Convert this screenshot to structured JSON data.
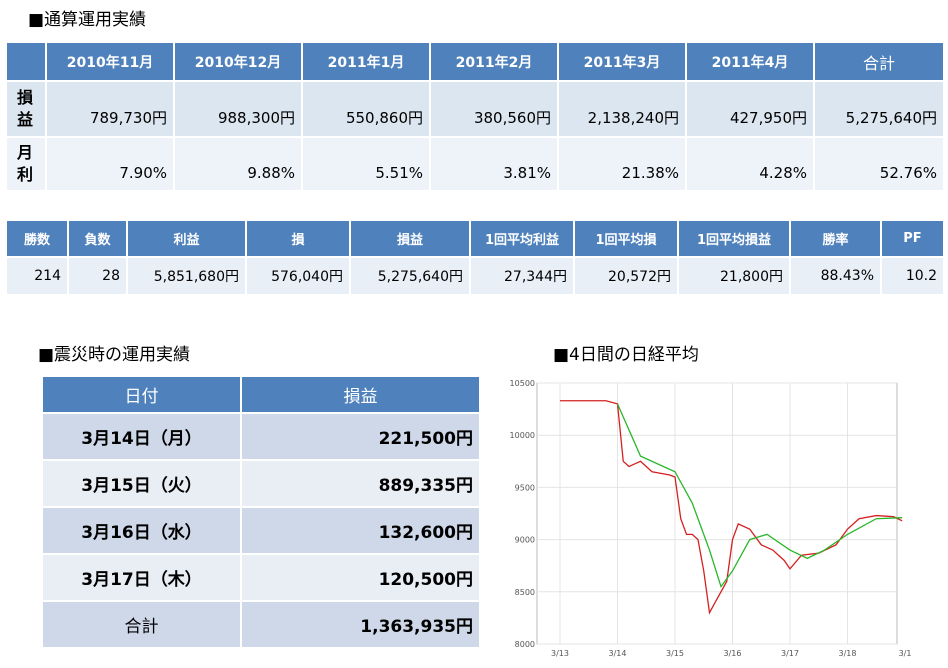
{
  "title": "■通算運用実績",
  "monthly_table": {
    "columns": [
      "2010年11月",
      "2010年12月",
      "2011年1月",
      "2011年2月",
      "2011年3月",
      "2011年4月",
      "合計"
    ],
    "rows": [
      {
        "label": "損益",
        "cells": [
          "789,730円",
          "988,300円",
          "550,860円",
          "380,560円",
          "2,138,240円",
          "427,950円",
          "5,275,640円"
        ]
      },
      {
        "label": "月利",
        "cells": [
          "7.90%",
          "9.88%",
          "5.51%",
          "3.81%",
          "21.38%",
          "4.28%",
          "52.76%"
        ]
      }
    ]
  },
  "stats_table": {
    "columns": [
      "勝数",
      "負数",
      "利益",
      "損",
      "損益",
      "1回平均利益",
      "1回平均損",
      "1回平均損益",
      "勝率",
      "PF"
    ],
    "cells": [
      "214",
      "28",
      "5,851,680円",
      "576,040円",
      "5,275,640円",
      "27,344円",
      "20,572円",
      "21,800円",
      "88.43%",
      "10.2"
    ]
  },
  "quake_title": "■震災時の運用実績",
  "quake_table": {
    "columns": [
      "日付",
      "損益"
    ],
    "rows": [
      [
        "3月14日（月）",
        "221,500円"
      ],
      [
        "3月15日（火）",
        "889,335円"
      ],
      [
        "3月16日（水）",
        "132,600円"
      ],
      [
        "3月17日（木）",
        "120,500円"
      ],
      [
        "合計",
        "1,363,935円"
      ]
    ]
  },
  "chart_data": {
    "type": "line",
    "title": "■4日間の日経平均",
    "xlim": [
      12.6,
      19.0
    ],
    "xticks": [
      {
        "value": 13,
        "label": "3/13"
      },
      {
        "value": 14,
        "label": "3/14"
      },
      {
        "value": 15,
        "label": "3/15"
      },
      {
        "value": 16,
        "label": "3/16"
      },
      {
        "value": 17,
        "label": "3/17"
      },
      {
        "value": 18,
        "label": "3/18"
      },
      {
        "value": 19,
        "label": "3/1"
      }
    ],
    "ylim": [
      8000,
      10500
    ],
    "yticks": [
      8000,
      8500,
      9000,
      9500,
      10000,
      10500
    ],
    "grid": true,
    "series": [
      {
        "color": "#d62020",
        "x": [
          13.0,
          13.8,
          14.0,
          14.1,
          14.2,
          14.4,
          14.6,
          14.9,
          15.0,
          15.1,
          15.2,
          15.3,
          15.4,
          15.5,
          15.6,
          15.7,
          15.9,
          16.0,
          16.1,
          16.3,
          16.5,
          16.7,
          16.9,
          17.0,
          17.2,
          17.5,
          17.8,
          18.0,
          18.2,
          18.5,
          18.8,
          18.95
        ],
        "values": [
          10330,
          10330,
          10300,
          9750,
          9700,
          9750,
          9650,
          9620,
          9600,
          9200,
          9050,
          9050,
          9000,
          8700,
          8300,
          8400,
          8600,
          9000,
          9150,
          9100,
          8950,
          8900,
          8800,
          8720,
          8850,
          8870,
          8950,
          9100,
          9200,
          9230,
          9220,
          9180
        ]
      },
      {
        "color": "#2bb52b",
        "x": [
          14.0,
          14.4,
          15.0,
          15.3,
          15.6,
          15.8,
          16.0,
          16.3,
          16.6,
          17.0,
          17.3,
          17.6,
          18.0,
          18.5,
          18.95
        ],
        "values": [
          10300,
          9800,
          9650,
          9350,
          8900,
          8550,
          8700,
          9000,
          9050,
          8900,
          8820,
          8900,
          9050,
          9200,
          9210
        ]
      }
    ]
  }
}
